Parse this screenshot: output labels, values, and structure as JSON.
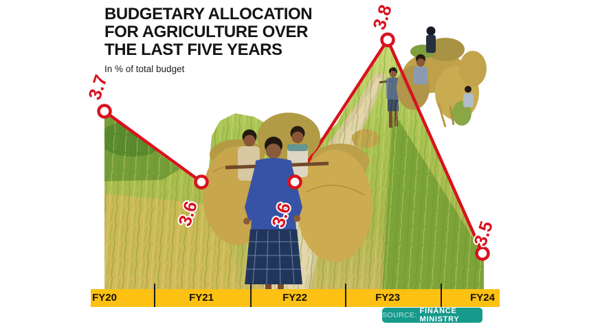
{
  "header": {
    "title_lines": [
      "BUDGETARY ALLOCATION",
      "FOR AGRICULTURE OVER",
      "THE LAST FIVE YEARS"
    ],
    "subtitle": "In % of total budget"
  },
  "chart_data": {
    "type": "line",
    "title": "BUDGETARY ALLOCATION FOR AGRICULTURE OVER THE LAST FIVE YEARS",
    "subtitle": "In % of total budget",
    "categories": [
      "FY20",
      "FY21",
      "FY22",
      "FY23",
      "FY24"
    ],
    "values": [
      3.7,
      3.6,
      3.6,
      3.8,
      3.5
    ],
    "ylabel": "% of total budget",
    "ylim": [
      3.4,
      3.9
    ],
    "grid": false,
    "legend_position": "none",
    "marker": "open-circle",
    "line_color": "#d8121e",
    "axis_band_color": "#fcc113",
    "label_color": "#d8121e"
  },
  "source": {
    "prefix": "SOURCE:",
    "label": "FINANCE MINISTRY",
    "bg_color": "#17998c"
  },
  "photo_alt": "Farmers carrying bundles of harvested paddy along a path between rice fields"
}
